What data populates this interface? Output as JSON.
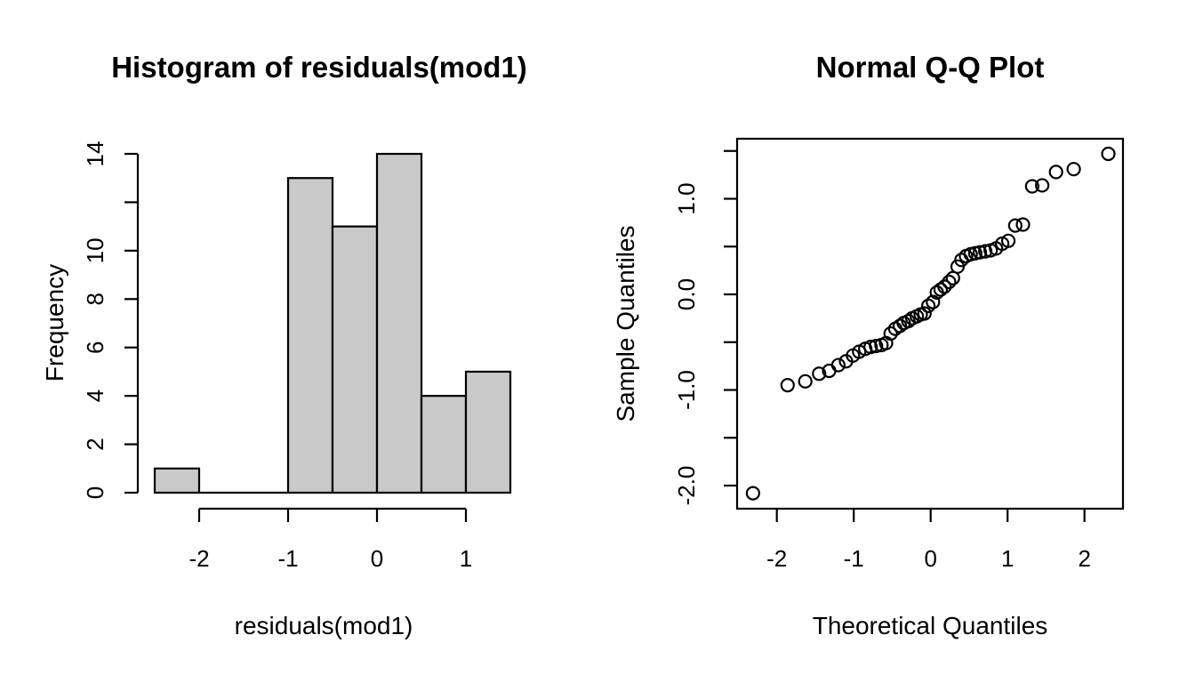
{
  "figure": {
    "background": "#ffffff",
    "foreground": "#000000"
  },
  "chart_data": [
    {
      "type": "bar",
      "name": "histogram",
      "title": "Histogram of residuals(mod1)",
      "xlabel": "residuals(mod1)",
      "ylabel": "Frequency",
      "bin_breaks": [
        -2.5,
        -2.0,
        -1.5,
        -1.0,
        -0.5,
        0.0,
        0.5,
        1.0,
        1.5
      ],
      "counts": [
        1,
        0,
        0,
        13,
        11,
        14,
        4,
        5
      ],
      "xlim": [
        -2.5,
        1.5
      ],
      "ylim": [
        0,
        14
      ],
      "x_ticks": [
        -2,
        -1,
        0,
        1
      ],
      "x_tick_labels": [
        "-2",
        "-1",
        "0",
        "1"
      ],
      "y_ticks": [
        0,
        2,
        4,
        6,
        8,
        10,
        12,
        14
      ],
      "y_tick_labels": [
        "0",
        "2",
        "4",
        "6",
        "8",
        "10",
        "",
        "14"
      ],
      "grid": false,
      "bar_fill": "#c9c9c9",
      "bar_stroke": "#000000"
    },
    {
      "type": "scatter",
      "name": "qq-plot",
      "title": "Normal Q-Q Plot",
      "xlabel": "Theoretical Quantiles",
      "ylabel": "Sample Quantiles",
      "xlim": [
        -2.52,
        2.5
      ],
      "ylim": [
        -2.24,
        1.63
      ],
      "x_ticks": [
        -2,
        -1,
        0,
        1,
        2
      ],
      "x_tick_labels": [
        "-2",
        "-1",
        "0",
        "1",
        "2"
      ],
      "y_ticks": [
        -2.0,
        -1.5,
        -1.0,
        -0.5,
        0.0,
        0.5,
        1.0,
        1.5
      ],
      "y_tick_labels": [
        "-2.0",
        "",
        "-1.0",
        "",
        "0.0",
        "",
        "1.0",
        ""
      ],
      "grid": false,
      "frame": "box",
      "marker": "open-circle",
      "points": [
        [
          -2.31,
          -2.08
        ],
        [
          -1.86,
          -0.95
        ],
        [
          -1.63,
          -0.91
        ],
        [
          -1.45,
          -0.83
        ],
        [
          -1.32,
          -0.8
        ],
        [
          -1.2,
          -0.74
        ],
        [
          -1.1,
          -0.7
        ],
        [
          -1.01,
          -0.64
        ],
        [
          -0.93,
          -0.6
        ],
        [
          -0.85,
          -0.57
        ],
        [
          -0.78,
          -0.55
        ],
        [
          -0.71,
          -0.54
        ],
        [
          -0.64,
          -0.53
        ],
        [
          -0.58,
          -0.51
        ],
        [
          -0.52,
          -0.41
        ],
        [
          -0.46,
          -0.36
        ],
        [
          -0.4,
          -0.33
        ],
        [
          -0.35,
          -0.3
        ],
        [
          -0.29,
          -0.28
        ],
        [
          -0.24,
          -0.25
        ],
        [
          -0.18,
          -0.23
        ],
        [
          -0.13,
          -0.21
        ],
        [
          -0.08,
          -0.2
        ],
        [
          -0.03,
          -0.12
        ],
        [
          0.03,
          -0.08
        ],
        [
          0.08,
          0.02
        ],
        [
          0.13,
          0.05
        ],
        [
          0.18,
          0.08
        ],
        [
          0.24,
          0.13
        ],
        [
          0.29,
          0.17
        ],
        [
          0.35,
          0.29
        ],
        [
          0.4,
          0.36
        ],
        [
          0.46,
          0.4
        ],
        [
          0.52,
          0.42
        ],
        [
          0.58,
          0.43
        ],
        [
          0.64,
          0.44
        ],
        [
          0.71,
          0.45
        ],
        [
          0.78,
          0.46
        ],
        [
          0.85,
          0.48
        ],
        [
          0.93,
          0.53
        ],
        [
          1.01,
          0.56
        ],
        [
          1.1,
          0.72
        ],
        [
          1.2,
          0.73
        ],
        [
          1.32,
          1.13
        ],
        [
          1.45,
          1.14
        ],
        [
          1.63,
          1.28
        ],
        [
          1.86,
          1.31
        ],
        [
          2.31,
          1.47
        ]
      ]
    }
  ]
}
